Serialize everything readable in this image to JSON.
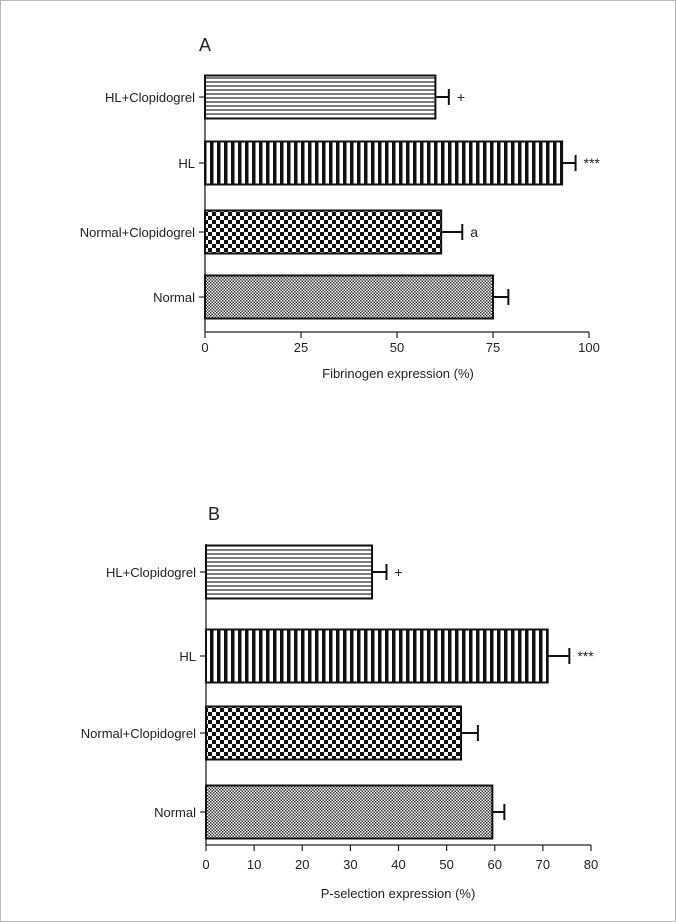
{
  "chart_data": [
    {
      "type": "bar",
      "orientation": "horizontal",
      "panel_label": "A",
      "categories": [
        "HL+Clopidogrel",
        "HL",
        "Normal+Clopidogrel",
        "Normal"
      ],
      "values": [
        60,
        93,
        61.5,
        75
      ],
      "errors": [
        3.5,
        3.5,
        5.5,
        4
      ],
      "annotations": [
        "+",
        "***",
        "a",
        ""
      ],
      "xlabel": "Fibrinogen expression (%)",
      "xlim": [
        0,
        100
      ],
      "xticks": [
        0,
        25,
        50,
        75,
        100
      ],
      "patterns": [
        "horizontal-lines",
        "vertical-lines",
        "checker",
        "fine-hatch"
      ]
    },
    {
      "type": "bar",
      "orientation": "horizontal",
      "panel_label": "B",
      "categories": [
        "HL+Clopidogrel",
        "HL",
        "Normal+Clopidogrel",
        "Normal"
      ],
      "values": [
        34.5,
        71,
        53,
        59.5
      ],
      "errors": [
        3,
        4.5,
        3.5,
        2.5
      ],
      "annotations": [
        "+",
        "***",
        "",
        ""
      ],
      "xlabel": "P-selection expression (%)",
      "xlim": [
        0,
        80
      ],
      "xticks": [
        0,
        10,
        20,
        30,
        40,
        50,
        60,
        70,
        80
      ],
      "patterns": [
        "horizontal-lines",
        "vertical-lines",
        "checker",
        "fine-hatch"
      ]
    }
  ]
}
